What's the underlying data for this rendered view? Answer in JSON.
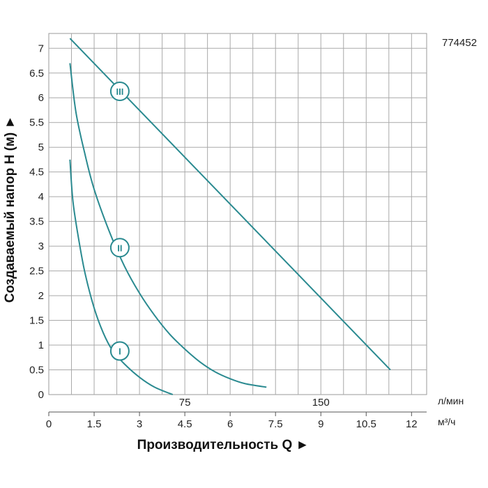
{
  "product_code": "774452",
  "chart_data": {
    "type": "line",
    "ylabel": "Создаваемый напор H (м) ►",
    "xlabel": "Производительность Q ►",
    "ylim": [
      0,
      7.3
    ],
    "xlim_m3h": [
      0,
      12.5
    ],
    "y_ticks": [
      "0",
      "0.5",
      "1",
      "1.5",
      "2",
      "2.5",
      "3",
      "3.5",
      "4",
      "4.5",
      "5",
      "5.5",
      "6",
      "6.5",
      "7"
    ],
    "x_ticks_m3h": [
      "0",
      "1.5",
      "3",
      "4.5",
      "6",
      "7.5",
      "9",
      "10.5",
      "12"
    ],
    "x_ticks_lmin": [
      "75",
      "150"
    ],
    "x_units": {
      "lmin": "л/мин",
      "m3h": "м³/ч"
    },
    "grid": true,
    "line_color": "#2a8a90",
    "series": [
      {
        "name": "I",
        "x": [
          0.7,
          0.8,
          1.0,
          1.2,
          1.5,
          1.8,
          2.1,
          2.5,
          3.0,
          3.5,
          4.1
        ],
        "y": [
          4.75,
          3.9,
          3.1,
          2.45,
          1.75,
          1.25,
          0.9,
          0.62,
          0.35,
          0.15,
          0.0
        ]
      },
      {
        "name": "II",
        "x": [
          0.7,
          0.9,
          1.2,
          1.5,
          2.0,
          2.5,
          3.0,
          3.5,
          4.0,
          4.5,
          5.0,
          5.5,
          6.0,
          6.5,
          7.2
        ],
        "y": [
          6.7,
          5.7,
          4.85,
          4.15,
          3.3,
          2.6,
          2.05,
          1.6,
          1.22,
          0.92,
          0.66,
          0.46,
          0.32,
          0.22,
          0.15
        ]
      },
      {
        "name": "III",
        "x": [
          0.7,
          11.3
        ],
        "y": [
          7.2,
          0.5
        ]
      }
    ],
    "markers": [
      {
        "label": "I",
        "x": 2.35,
        "y": 0.88
      },
      {
        "label": "II",
        "x": 2.35,
        "y": 2.97
      },
      {
        "label": "III",
        "x": 2.35,
        "y": 6.13
      }
    ]
  }
}
